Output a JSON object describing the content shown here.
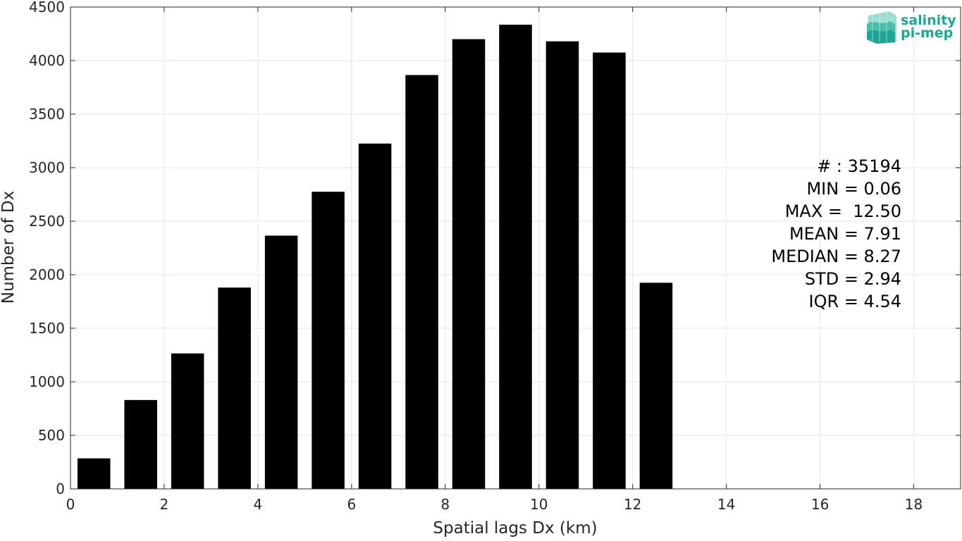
{
  "chart_data": {
    "type": "bar",
    "xlabel": "Spatial lags Dx (km)",
    "ylabel": "Number of Dx",
    "xlim": [
      0,
      19
    ],
    "ylim": [
      0,
      4500
    ],
    "grid": true,
    "x_ticks": [
      0,
      2,
      4,
      6,
      8,
      10,
      12,
      14,
      16,
      18
    ],
    "y_ticks": [
      0,
      500,
      1000,
      1500,
      2000,
      2500,
      3000,
      3500,
      4000,
      4500
    ],
    "bar_width": 0.7,
    "bar_color": "#000000",
    "bars": [
      {
        "x": 0.5,
        "value": 285
      },
      {
        "x": 1.5,
        "value": 830
      },
      {
        "x": 2.5,
        "value": 1265
      },
      {
        "x": 3.5,
        "value": 1880
      },
      {
        "x": 4.5,
        "value": 2365
      },
      {
        "x": 5.5,
        "value": 2775
      },
      {
        "x": 6.5,
        "value": 3225
      },
      {
        "x": 7.5,
        "value": 3865
      },
      {
        "x": 8.5,
        "value": 4200
      },
      {
        "x": 9.5,
        "value": 4335
      },
      {
        "x": 10.5,
        "value": 4180
      },
      {
        "x": 11.5,
        "value": 4075
      },
      {
        "x": 12.5,
        "value": 1925
      }
    ],
    "stats": [
      "# : 35194",
      "MIN = 0.06",
      "MAX =  12.50",
      "MEAN = 7.91",
      "MEDIAN = 8.27",
      "STD = 2.94",
      "IQR = 4.54"
    ]
  },
  "logo": {
    "line1": "salinity",
    "line2": "pi-mep",
    "icon": "salinity-wave-icon",
    "color": "#1fa596"
  }
}
